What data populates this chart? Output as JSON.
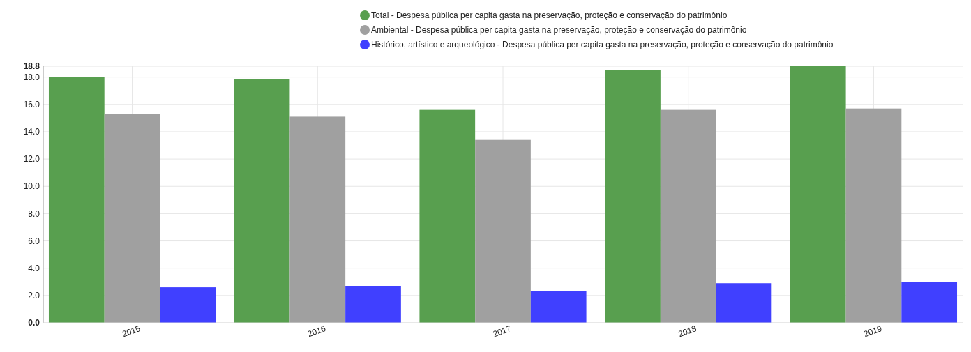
{
  "chart_data": {
    "type": "bar",
    "categories": [
      "2015",
      "2016",
      "2017",
      "2018",
      "2019"
    ],
    "series": [
      {
        "name": "Total - Despesa pública per capita gasta na preservação, proteção e conservação do patrimônio",
        "color": "#589f4f",
        "values": [
          18.0,
          17.85,
          15.6,
          18.5,
          18.8
        ]
      },
      {
        "name": "Ambiental - Despesa pública per capita gasta na preservação, proteção e conservação do patrimônio",
        "color": "#a0a0a0",
        "values": [
          15.3,
          15.1,
          13.4,
          15.6,
          15.7
        ]
      },
      {
        "name": "Histórico, artístico e arqueológico - Despesa pública per capita gasta na preservação, proteção e conservação do patrimônio",
        "color": "#4040ff",
        "values": [
          2.6,
          2.7,
          2.3,
          2.9,
          3.0
        ]
      }
    ],
    "ylim": [
      0,
      18.8
    ],
    "yticks": [
      {
        "value": 0,
        "label": "0.0"
      },
      {
        "value": 2,
        "label": "2.0"
      },
      {
        "value": 4,
        "label": "4.0"
      },
      {
        "value": 6,
        "label": "6.0"
      },
      {
        "value": 8,
        "label": "8.0"
      },
      {
        "value": 10,
        "label": "10.0"
      },
      {
        "value": 12,
        "label": "12.0"
      },
      {
        "value": 14,
        "label": "14.0"
      },
      {
        "value": 16,
        "label": "16.0"
      },
      {
        "value": 18,
        "label": "18.0"
      },
      18.8
    ],
    "grid": true,
    "legend": "top right"
  }
}
